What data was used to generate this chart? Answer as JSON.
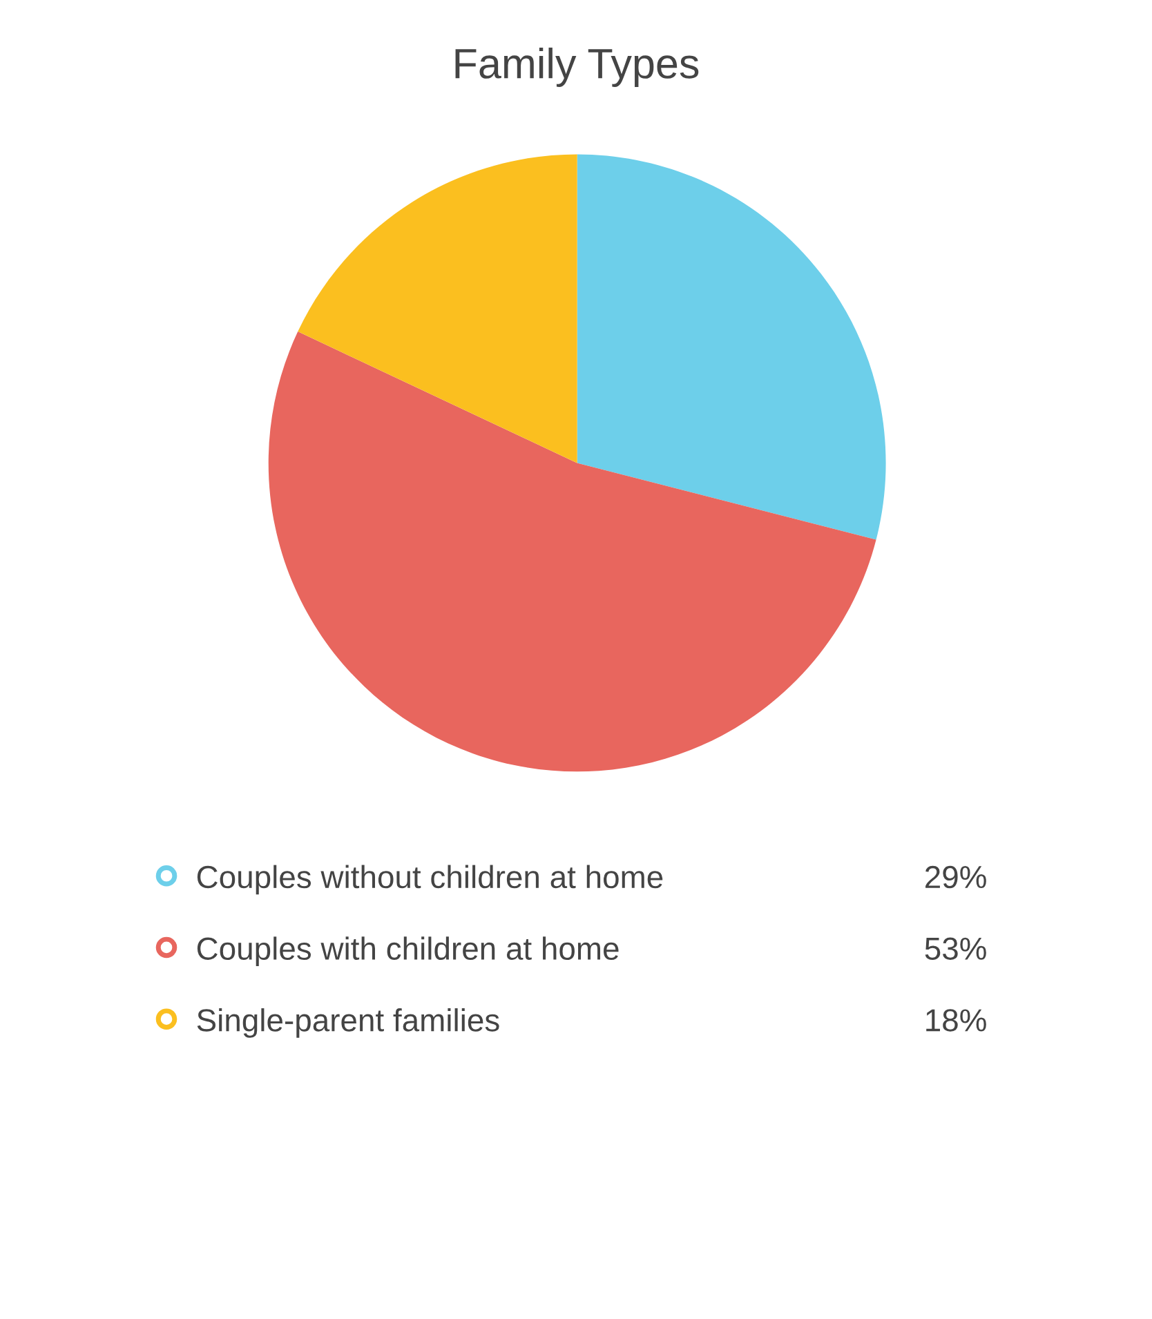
{
  "chart_data": {
    "type": "pie",
    "title": "Family Types",
    "categories": [
      "Couples without children at home",
      "Couples with children at home",
      "Single-parent families"
    ],
    "values": [
      29,
      53,
      18
    ],
    "colors": [
      "#6dcfea",
      "#e8665e",
      "#fbbf1f"
    ],
    "value_labels": [
      "29%",
      "53%",
      "18%"
    ],
    "legend": "bottom"
  }
}
